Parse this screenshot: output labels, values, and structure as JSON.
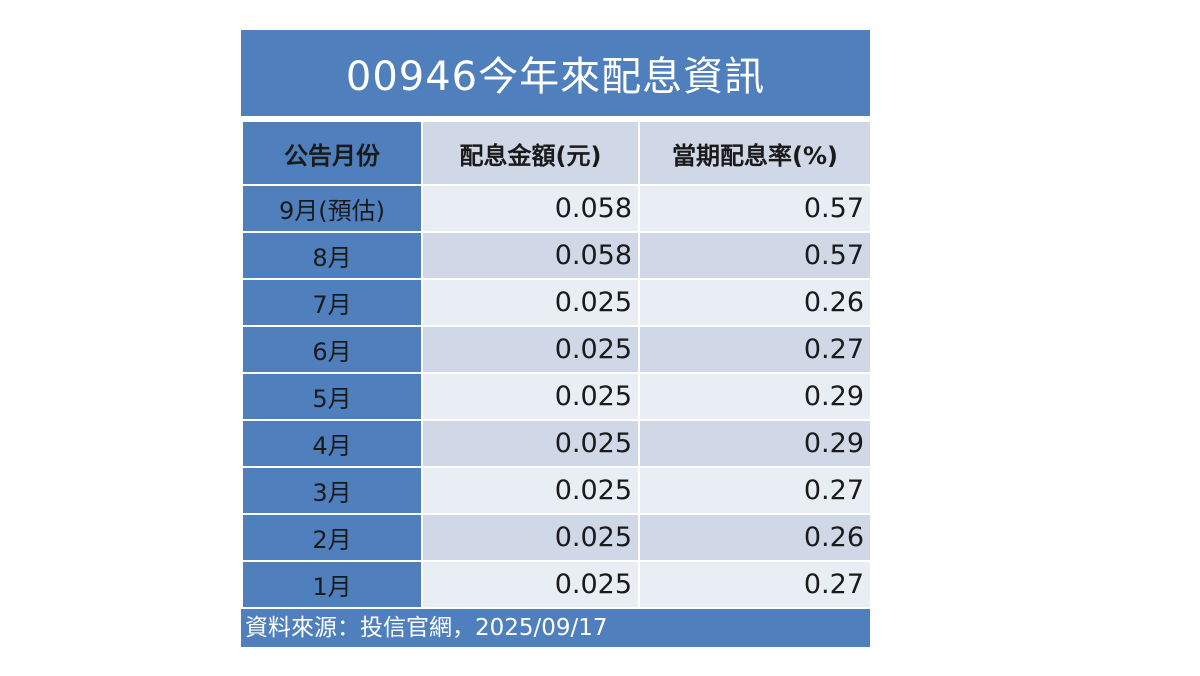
{
  "title": "00946今年來配息資訊",
  "headers": {
    "month": "公告月份",
    "amount": "配息金額(元)",
    "rate": "當期配息率(%)"
  },
  "rows": [
    {
      "month": "9月(預估)",
      "amount": "0.058",
      "rate": "0.57"
    },
    {
      "month": "8月",
      "amount": "0.058",
      "rate": "0.57"
    },
    {
      "month": "7月",
      "amount": "0.025",
      "rate": "0.26"
    },
    {
      "month": "6月",
      "amount": "0.025",
      "rate": "0.27"
    },
    {
      "month": "5月",
      "amount": "0.025",
      "rate": "0.29"
    },
    {
      "month": "4月",
      "amount": "0.025",
      "rate": "0.29"
    },
    {
      "month": "3月",
      "amount": "0.025",
      "rate": "0.27"
    },
    {
      "month": "2月",
      "amount": "0.025",
      "rate": "0.26"
    },
    {
      "month": "1月",
      "amount": "0.025",
      "rate": "0.27"
    }
  ],
  "source": "資料來源：投信官網，2025/09/17",
  "colors": {
    "header_blue": "#4f80bd",
    "band_light": "#e9edf4",
    "band_dark": "#d0d8e8"
  }
}
